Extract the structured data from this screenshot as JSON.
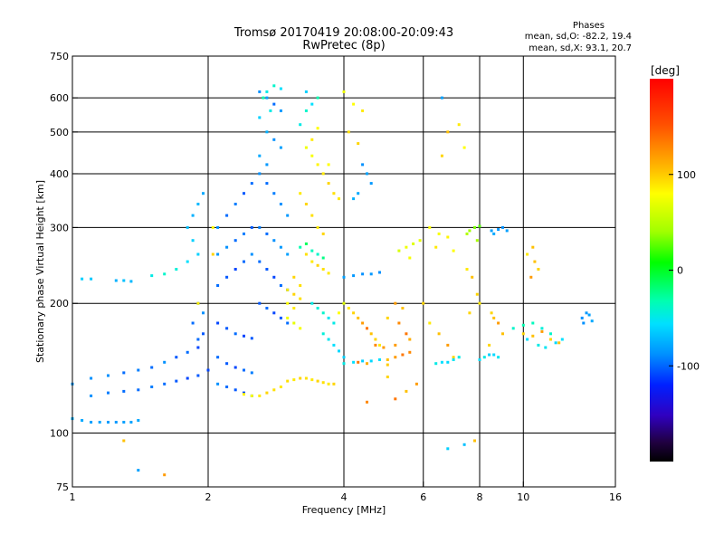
{
  "header": {
    "title_line1": "Tromsø 20170419 20:08:00-20:09:43",
    "title_line2": "RwPretec (8p)"
  },
  "stats": {
    "title": "Phases",
    "line1": "mean, sd,O: -82.2, 19.4",
    "line2": "mean, sd,X:  93.1, 20.7"
  },
  "colorbar": {
    "unit": "[deg]",
    "min": -200,
    "max": 200,
    "ticks": [
      {
        "value": 100,
        "label": "100"
      },
      {
        "value": 0,
        "label": "0"
      },
      {
        "value": -100,
        "label": "-100"
      }
    ]
  },
  "chart_data": {
    "type": "scatter",
    "xlabel": "Frequency [MHz]",
    "ylabel": "Stationary phase Virtual Height [km]",
    "xscale": "log",
    "yscale": "log",
    "xlim": [
      1,
      16
    ],
    "ylim": [
      75,
      750
    ],
    "grid": true,
    "x_ticks": [
      {
        "value": 1,
        "label": "1"
      },
      {
        "value": 2,
        "label": "2"
      },
      {
        "value": 4,
        "label": "4"
      },
      {
        "value": 6,
        "label": "6"
      },
      {
        "value": 8,
        "label": "8"
      },
      {
        "value": 10,
        "label": "10"
      },
      {
        "value": 16,
        "label": "16"
      }
    ],
    "y_ticks": [
      {
        "value": 75,
        "label": "75"
      },
      {
        "value": 100,
        "label": "100"
      },
      {
        "value": 200,
        "label": "200"
      },
      {
        "value": 300,
        "label": "300"
      },
      {
        "value": 400,
        "label": "400"
      },
      {
        "value": 500,
        "label": "500"
      },
      {
        "value": 600,
        "label": "600"
      },
      {
        "value": 750,
        "label": "750"
      }
    ],
    "x_gridlines": [
      2,
      4,
      6,
      8,
      10
    ],
    "y_gridlines": [
      100,
      200,
      300,
      400,
      500,
      600
    ],
    "points": [
      [
        1.0,
        108,
        -80
      ],
      [
        1.05,
        107,
        -85
      ],
      [
        1.1,
        106,
        -90
      ],
      [
        1.15,
        106,
        -88
      ],
      [
        1.2,
        106,
        -92
      ],
      [
        1.25,
        106,
        -95
      ],
      [
        1.3,
        106,
        -90
      ],
      [
        1.35,
        106,
        -88
      ],
      [
        1.4,
        107,
        -85
      ],
      [
        1.0,
        130,
        -95
      ],
      [
        1.1,
        134,
        -100
      ],
      [
        1.2,
        136,
        -100
      ],
      [
        1.3,
        138,
        -110
      ],
      [
        1.4,
        140,
        -105
      ],
      [
        1.5,
        142,
        -110
      ],
      [
        1.6,
        146,
        -100
      ],
      [
        1.7,
        150,
        -115
      ],
      [
        1.8,
        154,
        -110
      ],
      [
        1.9,
        158,
        -120
      ],
      [
        1.1,
        122,
        -100
      ],
      [
        1.2,
        124,
        -105
      ],
      [
        1.3,
        125,
        -110
      ],
      [
        1.4,
        126,
        -110
      ],
      [
        1.5,
        128,
        -105
      ],
      [
        1.6,
        130,
        -110
      ],
      [
        1.7,
        132,
        -115
      ],
      [
        1.8,
        134,
        -120
      ],
      [
        1.9,
        136,
        -115
      ],
      [
        2.0,
        140,
        -120
      ],
      [
        1.05,
        228,
        -60
      ],
      [
        1.1,
        228,
        -65
      ],
      [
        1.25,
        226,
        -80
      ],
      [
        1.3,
        226,
        -70
      ],
      [
        1.35,
        225,
        -75
      ],
      [
        1.5,
        232,
        -40
      ],
      [
        1.6,
        234,
        -30
      ],
      [
        1.7,
        240,
        -35
      ],
      [
        1.8,
        250,
        -50
      ],
      [
        1.9,
        260,
        -60
      ],
      [
        1.8,
        300,
        -70
      ],
      [
        1.85,
        320,
        -80
      ],
      [
        1.9,
        340,
        -75
      ],
      [
        1.95,
        360,
        -85
      ],
      [
        1.85,
        280,
        -60
      ],
      [
        1.9,
        200,
        -90
      ],
      [
        1.95,
        190,
        -100
      ],
      [
        1.85,
        180,
        -110
      ],
      [
        1.95,
        170,
        -115
      ],
      [
        1.9,
        165,
        -110
      ],
      [
        2.1,
        300,
        -100
      ],
      [
        2.2,
        320,
        -110
      ],
      [
        2.3,
        340,
        -105
      ],
      [
        2.4,
        360,
        -115
      ],
      [
        2.5,
        380,
        -110
      ],
      [
        2.1,
        260,
        -95
      ],
      [
        2.2,
        270,
        -100
      ],
      [
        2.3,
        280,
        -110
      ],
      [
        2.4,
        290,
        -105
      ],
      [
        2.5,
        300,
        -115
      ],
      [
        2.1,
        220,
        -110
      ],
      [
        2.2,
        230,
        -115
      ],
      [
        2.3,
        240,
        -120
      ],
      [
        2.4,
        250,
        -110
      ],
      [
        2.5,
        260,
        -100
      ],
      [
        2.1,
        180,
        -120
      ],
      [
        2.2,
        175,
        -115
      ],
      [
        2.3,
        170,
        -110
      ],
      [
        2.4,
        168,
        -120
      ],
      [
        2.5,
        166,
        -115
      ],
      [
        2.1,
        150,
        -110
      ],
      [
        2.2,
        145,
        -115
      ],
      [
        2.3,
        142,
        -120
      ],
      [
        2.4,
        140,
        -110
      ],
      [
        2.5,
        138,
        -105
      ],
      [
        2.1,
        130,
        -100
      ],
      [
        2.2,
        128,
        -110
      ],
      [
        2.3,
        126,
        -115
      ],
      [
        2.4,
        124,
        -120
      ],
      [
        2.5,
        122,
        -110
      ],
      [
        2.6,
        620,
        -100
      ],
      [
        2.7,
        600,
        -90
      ],
      [
        2.8,
        580,
        -110
      ],
      [
        2.9,
        560,
        -95
      ],
      [
        2.6,
        540,
        -60
      ],
      [
        2.7,
        500,
        -80
      ],
      [
        2.8,
        480,
        -100
      ],
      [
        2.9,
        460,
        -90
      ],
      [
        2.6,
        440,
        -85
      ],
      [
        2.7,
        420,
        -95
      ],
      [
        2.6,
        400,
        -100
      ],
      [
        2.7,
        380,
        -110
      ],
      [
        2.8,
        360,
        -105
      ],
      [
        2.9,
        340,
        -100
      ],
      [
        3.0,
        320,
        -95
      ],
      [
        2.6,
        300,
        -105
      ],
      [
        2.7,
        290,
        -110
      ],
      [
        2.8,
        280,
        -100
      ],
      [
        2.9,
        270,
        -95
      ],
      [
        3.0,
        260,
        -90
      ],
      [
        2.6,
        250,
        -110
      ],
      [
        2.7,
        240,
        -115
      ],
      [
        2.8,
        230,
        -120
      ],
      [
        2.9,
        220,
        -110
      ],
      [
        3.0,
        215,
        -105
      ],
      [
        2.6,
        200,
        -115
      ],
      [
        2.7,
        195,
        -110
      ],
      [
        2.8,
        190,
        -120
      ],
      [
        2.9,
        185,
        -115
      ],
      [
        3.0,
        180,
        -110
      ],
      [
        2.7,
        620,
        -40
      ],
      [
        2.8,
        640,
        -30
      ],
      [
        2.9,
        630,
        -50
      ],
      [
        2.65,
        600,
        -20
      ],
      [
        2.75,
        560,
        -40
      ],
      [
        3.2,
        360,
        110
      ],
      [
        3.3,
        340,
        120
      ],
      [
        3.4,
        320,
        115
      ],
      [
        3.5,
        300,
        110
      ],
      [
        3.6,
        290,
        120
      ],
      [
        3.3,
        260,
        115
      ],
      [
        3.4,
        250,
        110
      ],
      [
        3.5,
        245,
        120
      ],
      [
        3.6,
        240,
        115
      ],
      [
        3.7,
        235,
        110
      ],
      [
        3.1,
        230,
        120
      ],
      [
        3.2,
        220,
        115
      ],
      [
        3.0,
        215,
        110
      ],
      [
        3.1,
        210,
        120
      ],
      [
        3.2,
        205,
        115
      ],
      [
        3.0,
        200,
        100
      ],
      [
        3.1,
        195,
        110
      ],
      [
        3.0,
        185,
        90
      ],
      [
        3.1,
        180,
        85
      ],
      [
        3.2,
        175,
        95
      ],
      [
        3.0,
        132,
        115
      ],
      [
        3.1,
        133,
        110
      ],
      [
        3.2,
        134,
        120
      ],
      [
        3.3,
        134,
        115
      ],
      [
        3.4,
        133,
        110
      ],
      [
        3.5,
        132,
        120
      ],
      [
        3.6,
        131,
        115
      ],
      [
        3.7,
        130,
        110
      ],
      [
        3.8,
        130,
        120
      ],
      [
        2.9,
        128,
        110
      ],
      [
        2.8,
        126,
        115
      ],
      [
        2.7,
        124,
        120
      ],
      [
        2.6,
        122,
        110
      ],
      [
        2.5,
        122,
        100
      ],
      [
        2.4,
        123,
        105
      ],
      [
        3.6,
        400,
        110
      ],
      [
        3.7,
        380,
        120
      ],
      [
        3.8,
        360,
        115
      ],
      [
        3.9,
        350,
        110
      ],
      [
        3.7,
        420,
        100
      ],
      [
        3.4,
        440,
        95
      ],
      [
        3.5,
        420,
        105
      ],
      [
        3.3,
        460,
        90
      ],
      [
        3.4,
        480,
        110
      ],
      [
        3.5,
        510,
        100
      ],
      [
        3.2,
        520,
        -40
      ],
      [
        3.3,
        560,
        -30
      ],
      [
        3.4,
        580,
        -50
      ],
      [
        3.5,
        600,
        -20
      ],
      [
        3.3,
        620,
        -60
      ],
      [
        3.2,
        270,
        -20
      ],
      [
        3.3,
        275,
        -10
      ],
      [
        3.4,
        265,
        -25
      ],
      [
        3.5,
        260,
        -30
      ],
      [
        3.6,
        255,
        -15
      ],
      [
        3.4,
        200,
        -40
      ],
      [
        3.5,
        195,
        -35
      ],
      [
        3.6,
        190,
        -30
      ],
      [
        3.7,
        185,
        -45
      ],
      [
        3.8,
        180,
        -40
      ],
      [
        3.8,
        160,
        -50
      ],
      [
        3.9,
        155,
        -55
      ],
      [
        4.0,
        150,
        -60
      ],
      [
        3.7,
        165,
        -45
      ],
      [
        3.6,
        170,
        -35
      ],
      [
        4.0,
        620,
        90
      ],
      [
        4.2,
        580,
        100
      ],
      [
        4.4,
        560,
        110
      ],
      [
        4.1,
        500,
        115
      ],
      [
        4.3,
        470,
        120
      ],
      [
        4.0,
        230,
        -90
      ],
      [
        4.2,
        232,
        -95
      ],
      [
        4.4,
        234,
        -100
      ],
      [
        4.6,
        234,
        -95
      ],
      [
        4.8,
        236,
        -100
      ],
      [
        4.2,
        350,
        -80
      ],
      [
        4.3,
        360,
        -85
      ],
      [
        4.5,
        400,
        -90
      ],
      [
        4.6,
        380,
        -95
      ],
      [
        4.4,
        420,
        -100
      ],
      [
        4.0,
        200,
        80
      ],
      [
        4.1,
        195,
        110
      ],
      [
        4.2,
        190,
        120
      ],
      [
        4.3,
        185,
        130
      ],
      [
        4.4,
        180,
        140
      ],
      [
        4.5,
        175,
        150
      ],
      [
        4.6,
        170,
        130
      ],
      [
        4.7,
        165,
        120
      ],
      [
        4.8,
        160,
        110
      ],
      [
        4.9,
        158,
        140
      ],
      [
        4.0,
        145,
        -40
      ],
      [
        4.2,
        146,
        -50
      ],
      [
        4.4,
        147,
        -60
      ],
      [
        4.6,
        147,
        -55
      ],
      [
        4.8,
        148,
        -50
      ],
      [
        5.0,
        148,
        130
      ],
      [
        5.2,
        150,
        140
      ],
      [
        5.4,
        152,
        150
      ],
      [
        5.6,
        154,
        145
      ],
      [
        5.0,
        144,
        125
      ],
      [
        4.5,
        145,
        135
      ],
      [
        4.3,
        146,
        150
      ],
      [
        4.7,
        160,
        145
      ],
      [
        5.2,
        160,
        140
      ],
      [
        5.5,
        170,
        150
      ],
      [
        5.2,
        200,
        140
      ],
      [
        5.4,
        195,
        130
      ],
      [
        5.0,
        185,
        120
      ],
      [
        5.3,
        180,
        145
      ],
      [
        5.6,
        165,
        135
      ],
      [
        5.2,
        120,
        150
      ],
      [
        5.5,
        125,
        130
      ],
      [
        5.8,
        130,
        140
      ],
      [
        5.0,
        135,
        120
      ],
      [
        4.5,
        118,
        145
      ],
      [
        5.5,
        270,
        90
      ],
      [
        5.7,
        275,
        80
      ],
      [
        5.9,
        280,
        85
      ],
      [
        5.3,
        265,
        75
      ],
      [
        5.6,
        255,
        95
      ],
      [
        6.2,
        300,
        100
      ],
      [
        6.5,
        290,
        95
      ],
      [
        6.8,
        285,
        105
      ],
      [
        6.4,
        270,
        110
      ],
      [
        7.0,
        265,
        100
      ],
      [
        6.6,
        600,
        -90
      ],
      [
        6.8,
        500,
        130
      ],
      [
        7.2,
        520,
        110
      ],
      [
        6.6,
        440,
        120
      ],
      [
        7.4,
        460,
        100
      ],
      [
        6.0,
        200,
        120
      ],
      [
        6.2,
        180,
        110
      ],
      [
        6.5,
        170,
        130
      ],
      [
        6.8,
        160,
        140
      ],
      [
        7.0,
        150,
        120
      ],
      [
        6.4,
        145,
        -40
      ],
      [
        6.6,
        146,
        -50
      ],
      [
        6.8,
        146,
        -55
      ],
      [
        7.0,
        148,
        -45
      ],
      [
        7.2,
        150,
        -40
      ],
      [
        7.6,
        295,
        40
      ],
      [
        7.8,
        300,
        30
      ],
      [
        8.0,
        302,
        20
      ],
      [
        7.5,
        290,
        50
      ],
      [
        7.9,
        280,
        45
      ],
      [
        8.5,
        295,
        -90
      ],
      [
        8.8,
        297,
        -95
      ],
      [
        9.0,
        300,
        -100
      ],
      [
        9.2,
        295,
        -90
      ],
      [
        8.6,
        290,
        -85
      ],
      [
        7.5,
        240,
        110
      ],
      [
        7.7,
        230,
        130
      ],
      [
        7.9,
        210,
        120
      ],
      [
        8.0,
        200,
        110
      ],
      [
        7.6,
        190,
        120
      ],
      [
        8.5,
        190,
        120
      ],
      [
        8.6,
        185,
        130
      ],
      [
        8.8,
        180,
        140
      ],
      [
        9.0,
        170,
        130
      ],
      [
        8.4,
        160,
        120
      ],
      [
        8.0,
        148,
        -50
      ],
      [
        8.2,
        150,
        -40
      ],
      [
        8.4,
        152,
        -60
      ],
      [
        8.6,
        152,
        -55
      ],
      [
        8.8,
        150,
        -45
      ],
      [
        9.5,
        175,
        -30
      ],
      [
        10.0,
        178,
        -20
      ],
      [
        10.5,
        180,
        -25
      ],
      [
        11.0,
        175,
        -35
      ],
      [
        11.5,
        170,
        -30
      ],
      [
        10.0,
        170,
        120
      ],
      [
        10.5,
        168,
        130
      ],
      [
        11.0,
        172,
        140
      ],
      [
        11.5,
        165,
        120
      ],
      [
        12.0,
        162,
        130
      ],
      [
        10.2,
        165,
        -50
      ],
      [
        10.8,
        160,
        -40
      ],
      [
        11.2,
        158,
        -45
      ],
      [
        11.8,
        162,
        -55
      ],
      [
        12.2,
        165,
        -50
      ],
      [
        13.5,
        185,
        -100
      ],
      [
        14.0,
        188,
        -90
      ],
      [
        13.8,
        190,
        -95
      ],
      [
        14.2,
        182,
        -85
      ],
      [
        13.6,
        180,
        -100
      ],
      [
        10.5,
        270,
        130
      ],
      [
        10.2,
        260,
        110
      ],
      [
        10.8,
        240,
        120
      ],
      [
        10.4,
        230,
        140
      ],
      [
        10.6,
        250,
        130
      ],
      [
        6.8,
        92,
        -60
      ],
      [
        7.4,
        94,
        -70
      ],
      [
        7.8,
        96,
        130
      ],
      [
        1.4,
        82,
        -90
      ],
      [
        1.6,
        80,
        140
      ],
      [
        1.3,
        96,
        130
      ],
      [
        1.9,
        200,
        110
      ],
      [
        2.05,
        260,
        120
      ],
      [
        2.05,
        300,
        100
      ],
      [
        3.9,
        190,
        100
      ]
    ]
  }
}
